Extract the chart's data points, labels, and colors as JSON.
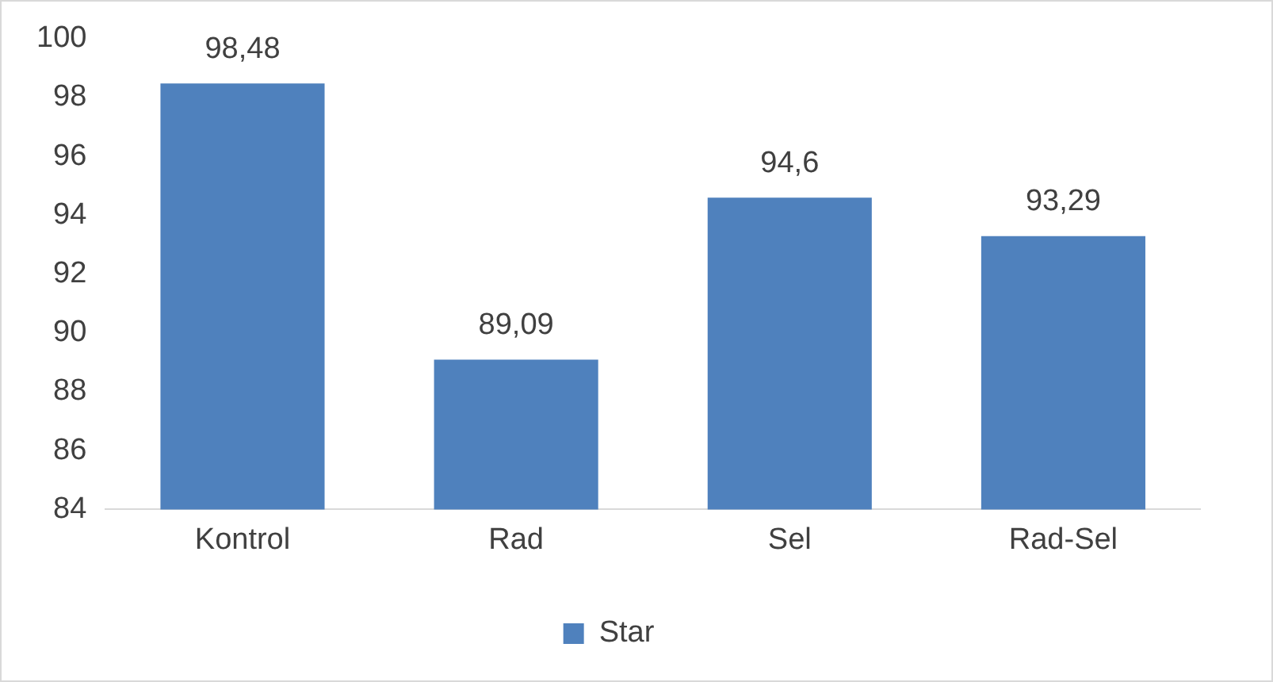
{
  "chart_data": {
    "type": "bar",
    "categories": [
      "Kontrol",
      "Rad",
      "Sel",
      "Rad-Sel"
    ],
    "series": [
      {
        "name": "Star",
        "color": "#4f81bd",
        "values": [
          98.48,
          89.09,
          94.6,
          93.29
        ],
        "value_labels": [
          "98,48",
          "89,09",
          "94,6",
          "93,29"
        ]
      }
    ],
    "ylim": [
      84,
      100
    ],
    "yticks": [
      84,
      86,
      88,
      90,
      92,
      94,
      96,
      98,
      100
    ],
    "grid": false,
    "legend": "bottom"
  }
}
